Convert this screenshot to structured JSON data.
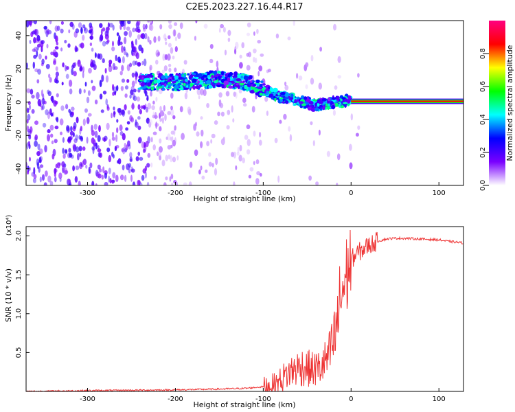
{
  "title": "C2E5.2023.227.16.44.R17",
  "chart_data": [
    {
      "type": "heatmap",
      "xlabel": "Height of straight line (km)",
      "ylabel": "Frequency (Hz)",
      "xlim": [
        -370,
        128
      ],
      "ylim": [
        -50,
        49
      ],
      "x_ticks": [
        -300,
        -200,
        -100,
        0,
        100
      ],
      "y_ticks": [
        -40,
        -20,
        0,
        20,
        40
      ],
      "colorbar": {
        "label": "Normalized spectral amplitude",
        "range": [
          0.0,
          1.0
        ],
        "ticks": [
          0.0,
          0.2,
          0.4,
          0.6,
          0.8
        ],
        "colors": [
          "#ffffff",
          "#7a00ff",
          "#0000ff",
          "#00ffff",
          "#00ff00",
          "#ffff00",
          "#ff0000",
          "#ff0080"
        ]
      },
      "tone": {
        "x_start": 0,
        "x_end": 128,
        "frequency": 0.5,
        "amplitude": 1.0
      },
      "ridge": {
        "x": [
          -240,
          -200,
          -150,
          -120,
          -100,
          -80,
          -60,
          -40,
          -20,
          0
        ],
        "frequency": [
          12,
          12,
          14,
          12,
          8,
          3,
          1,
          -2,
          0,
          1
        ]
      }
    },
    {
      "type": "line",
      "xlabel": "Height of straight line (km)",
      "ylabel": "SNR (10 * v/v)",
      "y_multiplier": "(x10⁴)",
      "xlim": [
        -370,
        128
      ],
      "ylim": [
        0,
        2.12
      ],
      "x_ticks": [
        -300,
        -200,
        -100,
        0,
        100
      ],
      "y_ticks": [
        0.5,
        1.0,
        1.5,
        2.0
      ],
      "series": [
        {
          "color": "#ee3333",
          "x": [
            -370,
            -300,
            -200,
            -150,
            -120,
            -100,
            -85,
            -75,
            -65,
            -55,
            -45,
            -35,
            -25,
            -18,
            -12,
            -5,
            0,
            10,
            20,
            30,
            40,
            50,
            60,
            80,
            100,
            110,
            120,
            128
          ],
          "y": [
            0.0,
            0.01,
            0.02,
            0.03,
            0.04,
            0.06,
            0.1,
            0.2,
            0.28,
            0.32,
            0.28,
            0.3,
            0.45,
            0.7,
            1.2,
            1.5,
            1.7,
            1.8,
            1.88,
            1.93,
            1.96,
            1.97,
            1.97,
            1.96,
            1.95,
            1.93,
            1.92,
            1.91
          ]
        }
      ]
    }
  ]
}
